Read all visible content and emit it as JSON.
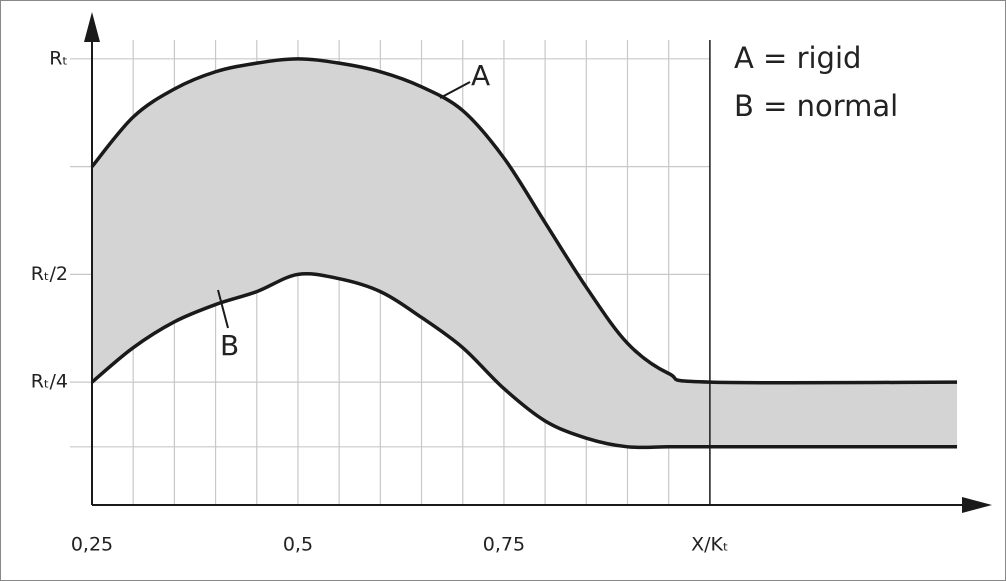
{
  "chart_data": {
    "type": "line",
    "x": [
      0.25,
      0.3,
      0.35,
      0.4,
      0.45,
      0.5,
      0.55,
      0.6,
      0.65,
      0.7,
      0.75,
      0.8,
      0.85,
      0.9,
      0.95,
      1.0,
      1.3
    ],
    "series": [
      {
        "name": "A",
        "color": "#1a1a1a",
        "values": [
          0.75,
          0.865,
          0.93,
          0.97,
          0.99,
          1.0,
          0.99,
          0.97,
          0.935,
          0.88,
          0.77,
          0.62,
          0.47,
          0.34,
          0.27,
          0.25,
          0.25
        ]
      },
      {
        "name": "B",
        "color": "#1a1a1a",
        "values": [
          0.25,
          0.33,
          0.39,
          0.43,
          0.46,
          0.5,
          0.49,
          0.46,
          0.4,
          0.33,
          0.235,
          0.16,
          0.12,
          0.1,
          0.1,
          0.1,
          0.1
        ]
      }
    ],
    "fill_color": "#d4d4d4",
    "legend": [
      "A = rigid",
      "B = normal"
    ],
    "xlim": [
      0.25,
      1.34
    ],
    "ylim": [
      -0.035,
      1.104
    ],
    "xticks": [
      {
        "value": 0.25,
        "label": "0,25"
      },
      {
        "value": 0.5,
        "label": "0,5"
      },
      {
        "value": 0.75,
        "label": "0,75"
      },
      {
        "value": 1.0,
        "label": "X/Kₜ"
      }
    ],
    "yticks": [
      {
        "value": 1.0,
        "label": "Rₜ"
      },
      {
        "value": 0.5,
        "label": "Rₜ/2"
      },
      {
        "value": 0.25,
        "label": "Rₜ/4"
      }
    ],
    "xgrid": [
      0.3,
      0.35,
      0.4,
      0.45,
      0.5,
      0.55,
      0.6,
      0.65,
      0.7,
      0.75,
      0.8,
      0.85,
      0.9,
      0.95
    ],
    "ygrid": [
      0.1,
      0.25,
      0.5,
      0.75,
      1.0
    ],
    "grid": true
  }
}
